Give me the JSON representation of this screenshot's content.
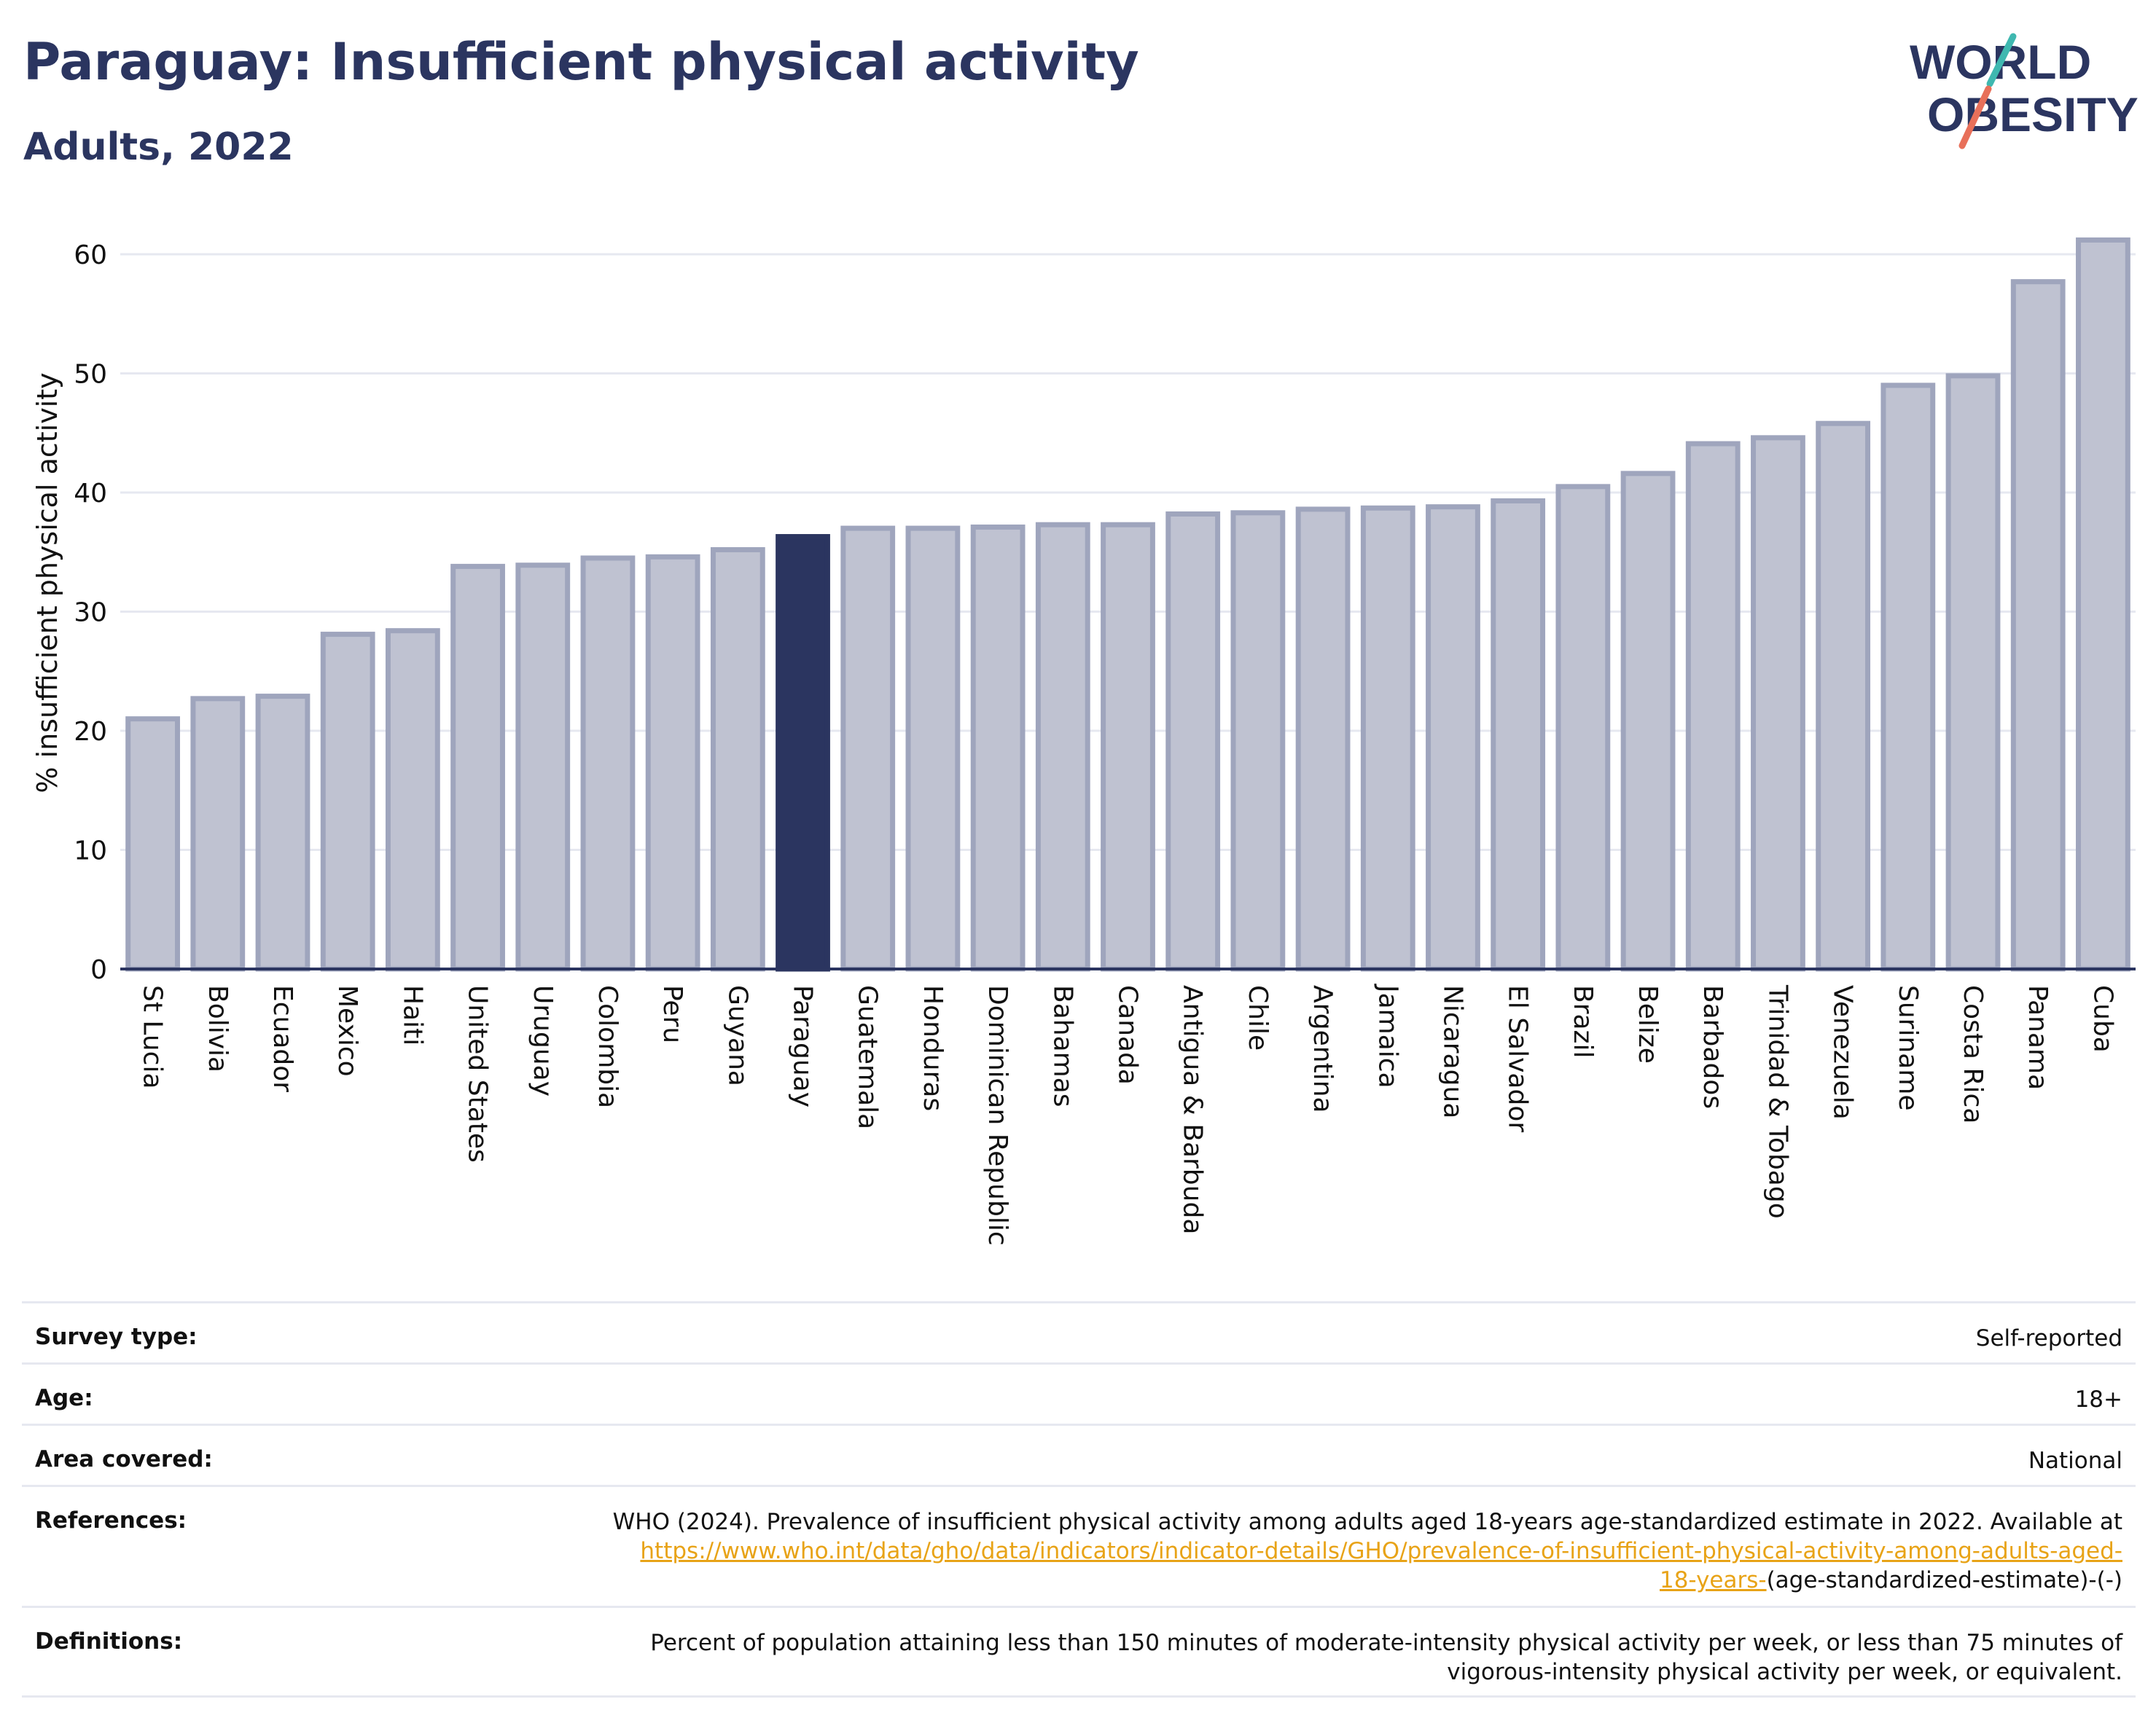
{
  "header": {
    "title": "Paraguay: Insufficient physical activity",
    "subtitle": "Adults, 2022"
  },
  "logo": {
    "line1": "WORLD",
    "line2": "OBESITY",
    "colors": {
      "text": "#2b3560",
      "teal": "#3fb8b0",
      "coral": "#e8705a"
    }
  },
  "colors": {
    "bar": "#bfc2d1",
    "bar_border": "#9fa5bd",
    "highlight": "#2b3560",
    "grid": "#e6e8f0",
    "axis": "#2b3560"
  },
  "chart_data": {
    "type": "bar",
    "ylabel": "% insufficient physical activity",
    "ylim": [
      0,
      63
    ],
    "yticks": [
      0,
      10,
      20,
      30,
      40,
      50,
      60
    ],
    "grid": true,
    "highlight": "Paraguay",
    "categories": [
      "St Lucia",
      "Bolivia",
      "Ecuador",
      "Mexico",
      "Haiti",
      "United States",
      "Uruguay",
      "Colombia",
      "Peru",
      "Guyana",
      "Paraguay",
      "Guatemala",
      "Honduras",
      "Dominican Republic",
      "Bahamas",
      "Canada",
      "Antigua & Barbuda",
      "Chile",
      "Argentina",
      "Jamaica",
      "Nicaragua",
      "El Salvador",
      "Brazil",
      "Belize",
      "Barbados",
      "Trinidad & Tobago",
      "Venezuela",
      "Suriname",
      "Costa Rica",
      "Panama",
      "Cuba"
    ],
    "values": [
      21.0,
      22.7,
      22.9,
      28.1,
      28.4,
      33.8,
      33.9,
      34.5,
      34.6,
      35.2,
      36.3,
      37.0,
      37.0,
      37.1,
      37.3,
      37.3,
      38.2,
      38.3,
      38.6,
      38.7,
      38.8,
      39.3,
      40.5,
      41.6,
      44.1,
      44.6,
      45.8,
      49.0,
      49.8,
      57.7,
      61.2
    ]
  },
  "meta": [
    {
      "label": "Survey type:",
      "value": "Self-reported"
    },
    {
      "label": "Age:",
      "value": "18+"
    },
    {
      "label": "Area covered:",
      "value": "National"
    },
    {
      "label": "References:",
      "value_prefix": "WHO (2024). Prevalence of insufficient physical activity among adults aged 18-years age-standardized estimate in 2022. Available at",
      "link_part1": "https://www.who.int/data/gho/data/indicators/indicator-details/GHO/prevalence-of-insufficient-physical-activity-among-adults-aged-",
      "link_part2": "18-years-",
      "value_suffix": "(age-standardized-estimate)-(-)"
    },
    {
      "label": "Definitions:",
      "value_line1": "Percent of population attaining less than 150 minutes of moderate-intensity physical activity per week, or less than 75 minutes of",
      "value_line2": "vigorous-intensity physical activity per week, or equivalent."
    }
  ]
}
